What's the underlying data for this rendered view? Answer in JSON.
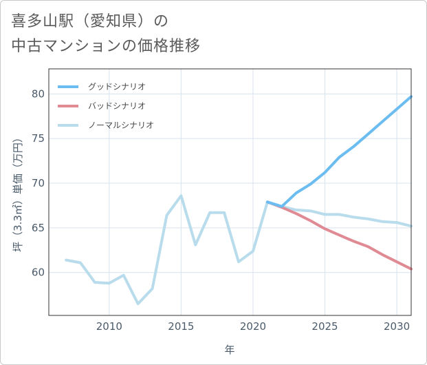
{
  "title_lines": [
    "喜多山駅（愛知県）の",
    "中古マンションの価格推移"
  ],
  "chart_data": {
    "type": "line",
    "xlabel": "年",
    "ylabel": "坪（3.3㎡）単価（万円）",
    "xlim": [
      2005.8,
      2031
    ],
    "ylim": [
      55.2,
      82.8
    ],
    "x_ticks": [
      2010,
      2015,
      2020,
      2025,
      2030
    ],
    "y_ticks": [
      60,
      65,
      70,
      75,
      80
    ],
    "grid": true,
    "legend_position": "top-left",
    "series": [
      {
        "name": "グッドシナリオ",
        "color": "#6bbcf0",
        "x": [
          2021,
          2022,
          2023,
          2024,
          2025,
          2026,
          2027,
          2028,
          2029,
          2030,
          2031
        ],
        "values": [
          67.9,
          67.4,
          68.9,
          69.9,
          71.2,
          72.9,
          74.1,
          75.5,
          76.9,
          78.3,
          79.7
        ]
      },
      {
        "name": "バッドシナリオ",
        "color": "#e08a94",
        "x": [
          2021,
          2022,
          2023,
          2024,
          2025,
          2026,
          2027,
          2028,
          2029,
          2030,
          2031
        ],
        "values": [
          67.9,
          67.3,
          66.6,
          65.8,
          64.9,
          64.2,
          63.5,
          62.9,
          62.0,
          61.2,
          60.4
        ]
      },
      {
        "name": "ノーマルシナリオ",
        "color": "#b8dcec",
        "x": [
          2007,
          2008,
          2009,
          2010,
          2011,
          2012,
          2013,
          2014,
          2015,
          2016,
          2017,
          2018,
          2019,
          2020,
          2021,
          2022,
          2023,
          2024,
          2025,
          2026,
          2027,
          2028,
          2029,
          2030,
          2031
        ],
        "values": [
          61.4,
          61.1,
          58.9,
          58.8,
          59.7,
          56.5,
          58.2,
          66.4,
          68.6,
          63.1,
          66.7,
          66.7,
          61.2,
          62.4,
          67.9,
          67.4,
          67.0,
          66.9,
          66.5,
          66.5,
          66.2,
          66.0,
          65.7,
          65.6,
          65.2
        ]
      }
    ]
  }
}
